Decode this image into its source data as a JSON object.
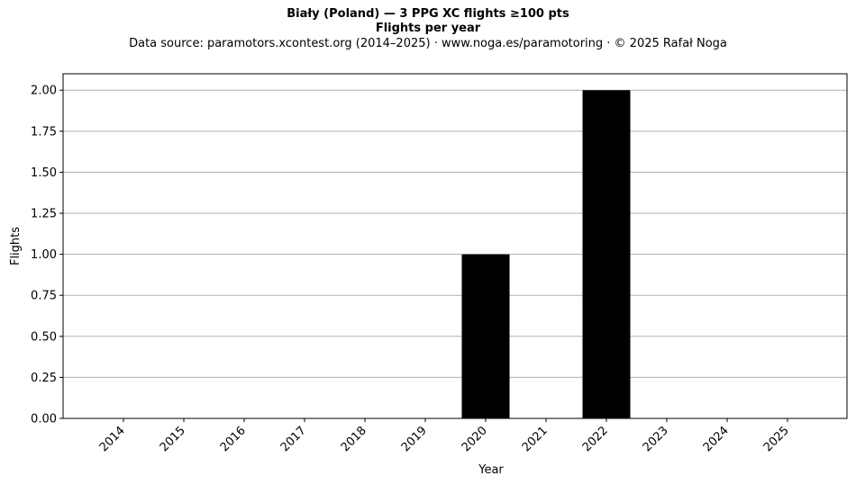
{
  "chart_data": {
    "type": "bar",
    "title": "Biały (Poland)  —  3 PPG XC flights ≥100 pts",
    "title_line2": "Flights per year",
    "subtitle": "Data source: paramotors.xcontest.org (2014–2025)  ·  www.noga.es/paramotoring  ·  © 2025 Rafał Noga",
    "xlabel": "Year",
    "ylabel": "Flights",
    "categories": [
      "2014",
      "2015",
      "2016",
      "2017",
      "2018",
      "2019",
      "2020",
      "2021",
      "2022",
      "2023",
      "2024",
      "2025"
    ],
    "values": [
      0,
      0,
      0,
      0,
      0,
      0,
      1,
      0,
      2,
      0,
      0,
      0
    ],
    "ylim": [
      0,
      2.1
    ],
    "yticks": [
      "0.00",
      "0.25",
      "0.50",
      "0.75",
      "1.00",
      "1.25",
      "1.50",
      "1.75",
      "2.00"
    ],
    "grid": "y",
    "bar_color": "#000000",
    "grid_color": "#b0b0b0"
  }
}
